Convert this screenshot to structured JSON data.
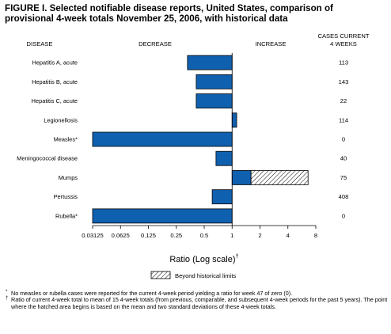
{
  "title": {
    "line1": "FIGURE I. Selected notifiable disease reports, United States, comparison of",
    "line2": "provisional 4-week totals November 25, 2006, with historical data"
  },
  "headers": {
    "disease": "DISEASE",
    "decrease": "DECREASE",
    "increase": "INCREASE",
    "cases_line1": "CASES CURRENT",
    "cases_line2": "4 WEEKS"
  },
  "legend": {
    "label": "Beyond historical limits"
  },
  "footnotes": {
    "star_mark": "*",
    "star": "No measles or rubella cases were reported for the current 4-week period yielding a ratio for week 47 of zero (0).",
    "dagger_mark": "†",
    "dagger": "Ratio of current 4-week total to mean of 15 4-week totals (from previous, comparable, and subsequent 4-week periods for the past 5 years). The point where the hatched area begins is based on the mean and two standard deviations of these 4-week totals."
  },
  "colors": {
    "bar": "#1060b0",
    "bar_edge": "#000000",
    "hatch": "#000000"
  },
  "chart_data": {
    "type": "bar",
    "orientation": "horizontal",
    "xscale": "log2",
    "xlim": [
      0.03125,
      8
    ],
    "xlabel": "Ratio (Log scale)",
    "xlabel_mark": "†",
    "xticks": [
      "0.03125",
      "0.0625",
      "0.125",
      "0.25",
      "0.5",
      "1",
      "2",
      "4",
      "8"
    ],
    "categories": [
      "Hepatitis A, acute",
      "Hepatitis B, acute",
      "Hepatitis C, acute",
      "Legionellosis",
      "Measles*",
      "Meningococcal disease",
      "Mumps",
      "Pertussis",
      "Rubella*"
    ],
    "values": [
      0.33,
      0.41,
      0.41,
      1.12,
      0.03125,
      0.67,
      1.6,
      0.61,
      0.03125
    ],
    "beyond_historical_limits_to": [
      null,
      null,
      null,
      null,
      null,
      null,
      6.6,
      null,
      null
    ],
    "cases_current_4_weeks": [
      "113",
      "143",
      "22",
      "114",
      "0",
      "40",
      "75",
      "408",
      "0"
    ],
    "baseline": 1
  }
}
